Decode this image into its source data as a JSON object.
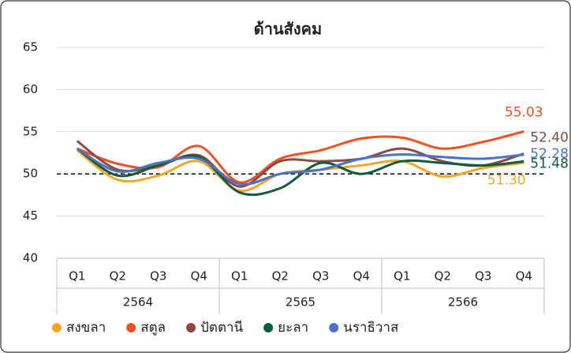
{
  "chart_data": {
    "type": "line",
    "title": "ด้านสังคม",
    "categories": [
      "Q1",
      "Q2",
      "Q3",
      "Q4",
      "Q1",
      "Q2",
      "Q3",
      "Q4",
      "Q1",
      "Q2",
      "Q3",
      "Q4"
    ],
    "groups": [
      "2564",
      "2565",
      "2566"
    ],
    "ylim": [
      40,
      65
    ],
    "yticks": [
      40,
      45,
      50,
      55,
      60,
      65
    ],
    "grid": true,
    "reference_line": 50,
    "smooth": true,
    "legend": "bottom",
    "series": [
      {
        "name": "สงขลา",
        "color": "#f5a623",
        "values": [
          52.8,
          49.3,
          49.8,
          51.5,
          48.0,
          50.0,
          50.5,
          51.0,
          51.5,
          49.7,
          50.7,
          51.3
        ],
        "value_labels": [
          null,
          null,
          null,
          null,
          null,
          null,
          null,
          null,
          null,
          null,
          null,
          "51.30"
        ]
      },
      {
        "name": "สตูล",
        "color": "#f4511e",
        "values": [
          53.0,
          51.2,
          50.8,
          53.3,
          49.0,
          51.8,
          52.8,
          54.2,
          54.3,
          53.0,
          53.8,
          55.03
        ],
        "value_labels": [
          null,
          null,
          null,
          null,
          null,
          null,
          null,
          null,
          null,
          null,
          null,
          "55.03"
        ]
      },
      {
        "name": "ปัตตานี",
        "color": "#8b4a42",
        "values": [
          53.9,
          50.5,
          51.0,
          52.2,
          48.5,
          51.5,
          51.5,
          51.8,
          53.0,
          51.5,
          51.0,
          52.4
        ],
        "value_labels": [
          null,
          null,
          null,
          null,
          null,
          null,
          null,
          null,
          null,
          null,
          null,
          "52.40"
        ]
      },
      {
        "name": "ยะลา",
        "color": "#0f5c3a",
        "values": [
          53.0,
          49.8,
          51.0,
          52.0,
          47.8,
          48.3,
          51.3,
          50.0,
          51.5,
          51.3,
          51.0,
          51.48
        ],
        "value_labels": [
          null,
          null,
          null,
          null,
          null,
          null,
          null,
          null,
          null,
          null,
          null,
          "51.48"
        ]
      },
      {
        "name": "นราธิวาส",
        "color": "#4a72c8",
        "values": [
          53.0,
          50.3,
          51.3,
          51.8,
          48.8,
          50.0,
          50.5,
          51.8,
          52.3,
          52.0,
          51.8,
          52.28
        ],
        "value_labels": [
          null,
          null,
          null,
          null,
          null,
          null,
          null,
          null,
          null,
          null,
          null,
          "52.28"
        ]
      }
    ]
  }
}
